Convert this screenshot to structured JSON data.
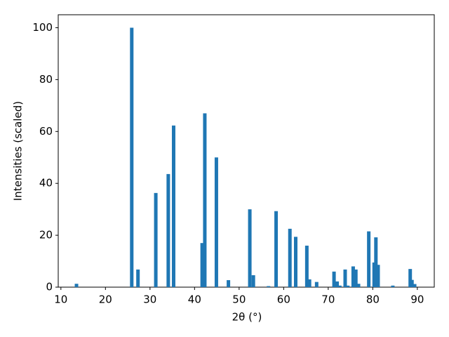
{
  "chart_data": {
    "type": "bar",
    "xlabel": "2θ (°)",
    "ylabel": "Intensities (scaled)",
    "x": [
      13.5,
      25.9,
      27.3,
      31.3,
      34.1,
      35.3,
      41.7,
      42.3,
      44.9,
      47.6,
      52.4,
      53.2,
      56.6,
      58.3,
      61.4,
      62.7,
      65.2,
      65.8,
      67.4,
      71.3,
      72.0,
      72.6,
      73.8,
      74.4,
      75.6,
      76.2,
      76.8,
      79.1,
      80.3,
      80.7,
      81.2,
      84.5,
      88.4,
      88.8,
      89.4
    ],
    "values": [
      1.3,
      100,
      6.8,
      36.3,
      43.6,
      62.3,
      17,
      67,
      50,
      2.7,
      30,
      4.6,
      0.4,
      29.3,
      22.5,
      19.4,
      16,
      3,
      2,
      6,
      2.2,
      0.6,
      6.8,
      0.6,
      8,
      6.8,
      1.3,
      21.5,
      9.5,
      19.2,
      8.6,
      0.6,
      7,
      2.8,
      1.2
    ],
    "color": "#1f77b4",
    "xlim": [
      9.4,
      93.8
    ],
    "xticks": [
      10,
      20,
      30,
      40,
      50,
      60,
      70,
      80,
      90
    ],
    "ylim": [
      0,
      105
    ],
    "yticks": [
      0,
      20,
      40,
      60,
      80,
      100
    ]
  }
}
